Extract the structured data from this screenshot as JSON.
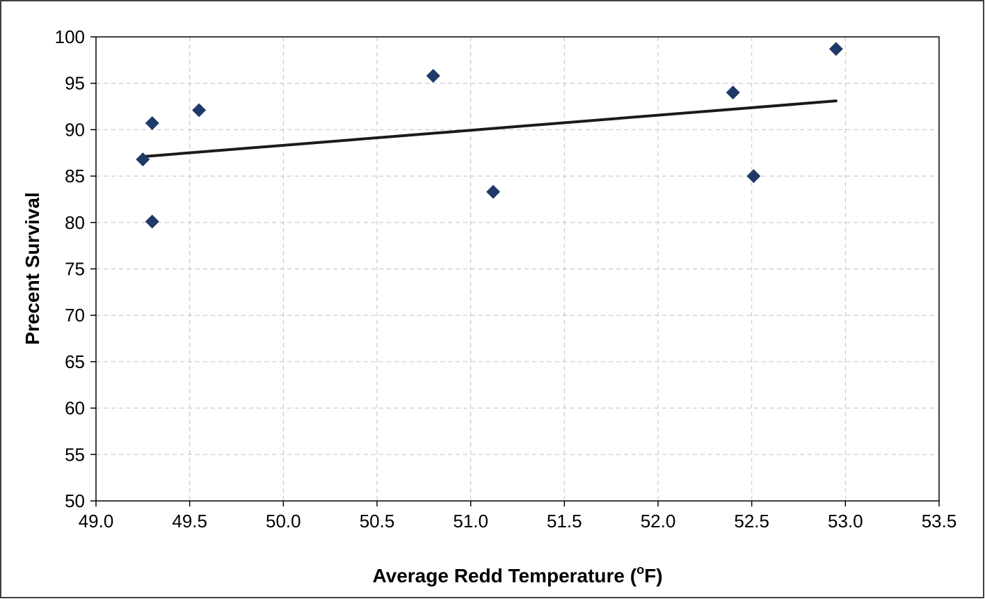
{
  "chart_data": {
    "type": "scatter",
    "title": "",
    "xlabel": "Average Redd Temperature (°F)",
    "xlabel_parts": {
      "before": "Average Redd Temperature (",
      "sup": "o",
      "after": "F)"
    },
    "ylabel": "Precent Survival",
    "xlim": [
      49.0,
      53.5
    ],
    "ylim": [
      50,
      100
    ],
    "x_ticks": [
      "49.0",
      "49.5",
      "50.0",
      "50.5",
      "51.0",
      "51.5",
      "52.0",
      "52.5",
      "53.0",
      "53.5"
    ],
    "y_ticks": [
      "50",
      "55",
      "60",
      "65",
      "70",
      "75",
      "80",
      "85",
      "90",
      "95",
      "100"
    ],
    "grid": true,
    "legend": "none",
    "colors": {
      "marker": "#1f3a68",
      "trendline": "#1a1a1a",
      "grid": "#bfbfbf"
    },
    "series": [
      {
        "marker": "diamond",
        "points": [
          {
            "x": 49.25,
            "y": 86.8
          },
          {
            "x": 49.3,
            "y": 90.7
          },
          {
            "x": 49.3,
            "y": 80.1
          },
          {
            "x": 49.55,
            "y": 92.1
          },
          {
            "x": 50.8,
            "y": 95.8
          },
          {
            "x": 51.12,
            "y": 83.3
          },
          {
            "x": 52.4,
            "y": 94.0
          },
          {
            "x": 52.51,
            "y": 85.0
          },
          {
            "x": 52.95,
            "y": 98.7
          }
        ]
      }
    ],
    "trendline": {
      "type": "linear",
      "x": [
        49.25,
        52.95
      ],
      "y": [
        87.1,
        93.1
      ]
    }
  }
}
